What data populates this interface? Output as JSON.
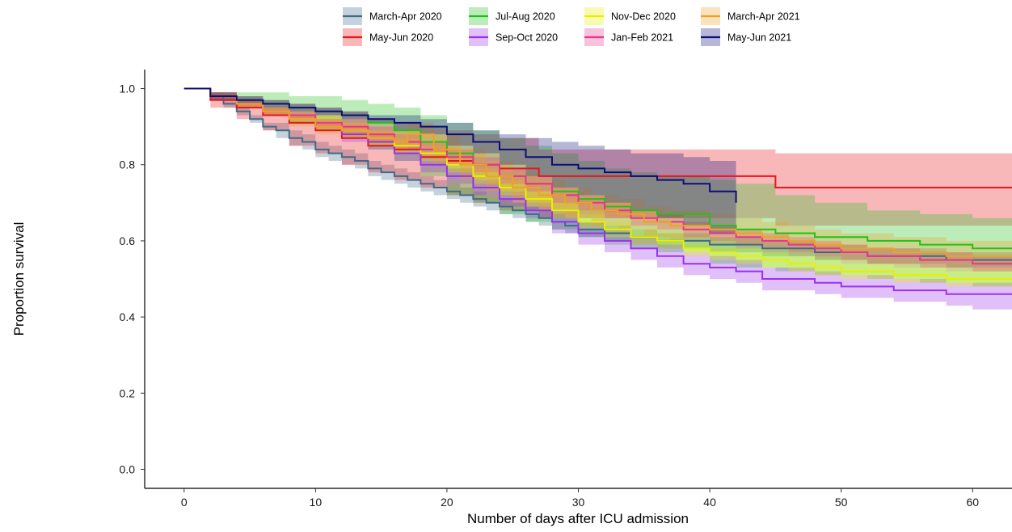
{
  "chart_data": {
    "type": "line",
    "subtype": "kaplan-meier survival curves with confidence bands",
    "title": "",
    "xlabel": "Number of days after ICU admission",
    "ylabel": "Proportion survival",
    "xlim": [
      -3,
      63
    ],
    "ylim": [
      -0.05,
      1.05
    ],
    "xticks": [
      "0",
      "10",
      "20",
      "30",
      "40",
      "50",
      "60"
    ],
    "yticks": [
      "0.0",
      "0.2",
      "0.4",
      "0.6",
      "0.8",
      "1.0"
    ],
    "grid": false,
    "legend_position": "top",
    "series": [
      {
        "name": "March-Apr 2020",
        "color": "#3f6a8a",
        "x": [
          0,
          2,
          3,
          4,
          5,
          6,
          7,
          8,
          9,
          10,
          11,
          12,
          13,
          14,
          15,
          16,
          17,
          18,
          19,
          20,
          21,
          22,
          23,
          24,
          25,
          26,
          27,
          28,
          29,
          30,
          32,
          34,
          36,
          38,
          40,
          42,
          44,
          46,
          48,
          50,
          52,
          54,
          56,
          58,
          60,
          63
        ],
        "y": [
          1.0,
          0.98,
          0.96,
          0.94,
          0.92,
          0.9,
          0.89,
          0.87,
          0.86,
          0.84,
          0.83,
          0.82,
          0.81,
          0.79,
          0.78,
          0.77,
          0.76,
          0.75,
          0.74,
          0.73,
          0.72,
          0.71,
          0.7,
          0.69,
          0.68,
          0.67,
          0.66,
          0.65,
          0.64,
          0.63,
          0.62,
          0.61,
          0.6,
          0.6,
          0.59,
          0.59,
          0.58,
          0.58,
          0.57,
          0.57,
          0.56,
          0.56,
          0.56,
          0.55,
          0.55,
          0.55
        ],
        "lower": [
          1.0,
          0.97,
          0.95,
          0.93,
          0.91,
          0.89,
          0.87,
          0.85,
          0.84,
          0.82,
          0.81,
          0.8,
          0.79,
          0.77,
          0.76,
          0.75,
          0.74,
          0.73,
          0.72,
          0.71,
          0.7,
          0.69,
          0.68,
          0.67,
          0.66,
          0.65,
          0.64,
          0.63,
          0.62,
          0.61,
          0.6,
          0.59,
          0.58,
          0.58,
          0.57,
          0.57,
          0.56,
          0.56,
          0.55,
          0.55,
          0.54,
          0.54,
          0.54,
          0.53,
          0.53,
          0.53
        ],
        "upper": [
          1.0,
          0.99,
          0.97,
          0.95,
          0.93,
          0.91,
          0.91,
          0.89,
          0.88,
          0.86,
          0.85,
          0.84,
          0.83,
          0.81,
          0.8,
          0.79,
          0.78,
          0.77,
          0.76,
          0.75,
          0.74,
          0.73,
          0.72,
          0.71,
          0.7,
          0.69,
          0.68,
          0.67,
          0.66,
          0.65,
          0.64,
          0.63,
          0.62,
          0.62,
          0.61,
          0.61,
          0.6,
          0.6,
          0.59,
          0.59,
          0.58,
          0.58,
          0.58,
          0.57,
          0.57,
          0.57
        ]
      },
      {
        "name": "May-Jun 2020",
        "color": "#e8151b",
        "x": [
          0,
          2,
          4,
          6,
          8,
          10,
          12,
          14,
          16,
          18,
          20,
          22,
          24,
          27,
          45,
          63
        ],
        "y": [
          1.0,
          0.97,
          0.95,
          0.93,
          0.91,
          0.89,
          0.87,
          0.85,
          0.84,
          0.82,
          0.81,
          0.8,
          0.79,
          0.77,
          0.74,
          0.74
        ],
        "lower": [
          1.0,
          0.95,
          0.92,
          0.89,
          0.85,
          0.83,
          0.8,
          0.78,
          0.76,
          0.74,
          0.72,
          0.7,
          0.68,
          0.66,
          0.64,
          0.64
        ],
        "upper": [
          1.0,
          0.99,
          0.98,
          0.97,
          0.96,
          0.95,
          0.94,
          0.92,
          0.91,
          0.9,
          0.89,
          0.88,
          0.87,
          0.84,
          0.83,
          0.83
        ]
      },
      {
        "name": "Jul-Aug 2020",
        "color": "#22c11a",
        "x": [
          0,
          2,
          4,
          6,
          8,
          10,
          12,
          14,
          16,
          18,
          20,
          22,
          24,
          26,
          28,
          30,
          32,
          34,
          36,
          40,
          42,
          45,
          48,
          52,
          56,
          60,
          63
        ],
        "y": [
          1.0,
          0.98,
          0.97,
          0.96,
          0.95,
          0.94,
          0.93,
          0.91,
          0.89,
          0.86,
          0.83,
          0.8,
          0.77,
          0.75,
          0.73,
          0.71,
          0.69,
          0.68,
          0.67,
          0.64,
          0.63,
          0.62,
          0.61,
          0.6,
          0.59,
          0.58,
          0.58
        ],
        "lower": [
          1.0,
          0.97,
          0.95,
          0.93,
          0.91,
          0.89,
          0.87,
          0.84,
          0.81,
          0.77,
          0.72,
          0.7,
          0.67,
          0.65,
          0.63,
          0.61,
          0.59,
          0.58,
          0.57,
          0.54,
          0.53,
          0.52,
          0.51,
          0.5,
          0.49,
          0.48,
          0.48
        ],
        "upper": [
          1.0,
          0.99,
          0.99,
          0.99,
          0.98,
          0.98,
          0.97,
          0.96,
          0.95,
          0.93,
          0.91,
          0.89,
          0.87,
          0.85,
          0.83,
          0.81,
          0.79,
          0.78,
          0.77,
          0.76,
          0.75,
          0.72,
          0.7,
          0.68,
          0.67,
          0.66,
          0.66
        ]
      },
      {
        "name": "Sep-Oct 2020",
        "color": "#9b30f0",
        "x": [
          0,
          2,
          4,
          6,
          8,
          10,
          12,
          14,
          16,
          18,
          20,
          22,
          24,
          26,
          28,
          30,
          32,
          34,
          36,
          38,
          40,
          42,
          44,
          46,
          48,
          50,
          52,
          54,
          56,
          58,
          60,
          63
        ],
        "y": [
          1.0,
          0.98,
          0.96,
          0.94,
          0.92,
          0.9,
          0.88,
          0.86,
          0.83,
          0.8,
          0.77,
          0.74,
          0.71,
          0.68,
          0.65,
          0.62,
          0.6,
          0.58,
          0.56,
          0.54,
          0.53,
          0.52,
          0.5,
          0.5,
          0.49,
          0.48,
          0.48,
          0.47,
          0.47,
          0.46,
          0.46,
          0.46
        ],
        "lower": [
          1.0,
          0.97,
          0.95,
          0.93,
          0.91,
          0.89,
          0.86,
          0.84,
          0.81,
          0.78,
          0.75,
          0.72,
          0.69,
          0.66,
          0.62,
          0.59,
          0.57,
          0.55,
          0.53,
          0.51,
          0.5,
          0.49,
          0.47,
          0.47,
          0.46,
          0.45,
          0.45,
          0.44,
          0.44,
          0.43,
          0.42,
          0.42
        ],
        "upper": [
          1.0,
          0.99,
          0.97,
          0.95,
          0.93,
          0.91,
          0.9,
          0.88,
          0.85,
          0.82,
          0.79,
          0.76,
          0.73,
          0.7,
          0.68,
          0.65,
          0.63,
          0.61,
          0.59,
          0.57,
          0.56,
          0.55,
          0.53,
          0.53,
          0.52,
          0.51,
          0.51,
          0.5,
          0.5,
          0.49,
          0.49,
          0.49
        ]
      },
      {
        "name": "Nov-Dec 2020",
        "color": "#e8f000",
        "x": [
          0,
          2,
          4,
          6,
          8,
          10,
          12,
          14,
          16,
          18,
          20,
          22,
          24,
          26,
          28,
          30,
          32,
          34,
          36,
          38,
          40,
          42,
          44,
          46,
          48,
          50,
          52,
          54,
          56,
          58,
          60,
          63
        ],
        "y": [
          1.0,
          0.98,
          0.96,
          0.94,
          0.92,
          0.91,
          0.89,
          0.87,
          0.85,
          0.83,
          0.8,
          0.77,
          0.74,
          0.71,
          0.68,
          0.65,
          0.63,
          0.61,
          0.6,
          0.58,
          0.57,
          0.56,
          0.55,
          0.54,
          0.53,
          0.52,
          0.52,
          0.51,
          0.51,
          0.5,
          0.5,
          0.5
        ],
        "lower": [
          1.0,
          0.97,
          0.95,
          0.93,
          0.91,
          0.89,
          0.87,
          0.85,
          0.83,
          0.81,
          0.78,
          0.75,
          0.72,
          0.69,
          0.66,
          0.63,
          0.61,
          0.59,
          0.58,
          0.56,
          0.55,
          0.54,
          0.53,
          0.52,
          0.51,
          0.5,
          0.5,
          0.49,
          0.49,
          0.48,
          0.48,
          0.47
        ],
        "upper": [
          1.0,
          0.99,
          0.97,
          0.95,
          0.93,
          0.93,
          0.91,
          0.89,
          0.87,
          0.85,
          0.82,
          0.79,
          0.76,
          0.73,
          0.7,
          0.67,
          0.65,
          0.63,
          0.62,
          0.6,
          0.59,
          0.58,
          0.57,
          0.56,
          0.55,
          0.54,
          0.54,
          0.53,
          0.53,
          0.52,
          0.52,
          0.52
        ]
      },
      {
        "name": "Jan-Feb 2021",
        "color": "#e8348c",
        "x": [
          0,
          2,
          4,
          6,
          8,
          10,
          12,
          14,
          16,
          18,
          20,
          22,
          24,
          26,
          28,
          30,
          32,
          34,
          36,
          38,
          40,
          42,
          44,
          46,
          48,
          50,
          52,
          54,
          56,
          58,
          60,
          63
        ],
        "y": [
          1.0,
          0.98,
          0.96,
          0.94,
          0.93,
          0.91,
          0.9,
          0.88,
          0.86,
          0.84,
          0.82,
          0.8,
          0.77,
          0.75,
          0.72,
          0.7,
          0.68,
          0.66,
          0.65,
          0.63,
          0.62,
          0.61,
          0.6,
          0.59,
          0.58,
          0.57,
          0.56,
          0.56,
          0.55,
          0.55,
          0.54,
          0.54
        ],
        "lower": [
          1.0,
          0.97,
          0.95,
          0.93,
          0.92,
          0.9,
          0.88,
          0.86,
          0.84,
          0.82,
          0.8,
          0.78,
          0.75,
          0.73,
          0.7,
          0.68,
          0.66,
          0.64,
          0.63,
          0.61,
          0.6,
          0.59,
          0.58,
          0.57,
          0.56,
          0.55,
          0.54,
          0.54,
          0.53,
          0.53,
          0.52,
          0.52
        ],
        "upper": [
          1.0,
          0.99,
          0.97,
          0.95,
          0.94,
          0.92,
          0.92,
          0.9,
          0.88,
          0.86,
          0.84,
          0.82,
          0.79,
          0.77,
          0.74,
          0.72,
          0.7,
          0.68,
          0.67,
          0.65,
          0.64,
          0.63,
          0.62,
          0.61,
          0.6,
          0.59,
          0.58,
          0.58,
          0.57,
          0.57,
          0.56,
          0.56
        ]
      },
      {
        "name": "March-Apr 2021",
        "color": "#f0a024",
        "x": [
          0,
          2,
          4,
          6,
          8,
          10,
          12,
          14,
          16,
          17,
          19,
          21,
          23,
          25,
          27,
          29,
          31,
          33,
          35,
          37,
          40,
          42,
          44,
          46,
          48,
          50,
          52,
          54,
          56,
          58,
          60,
          63
        ],
        "y": [
          1.0,
          0.98,
          0.96,
          0.94,
          0.92,
          0.9,
          0.89,
          0.87,
          0.86,
          0.88,
          0.84,
          0.8,
          0.77,
          0.74,
          0.72,
          0.7,
          0.68,
          0.67,
          0.65,
          0.64,
          0.63,
          0.62,
          0.61,
          0.6,
          0.59,
          0.58,
          0.58,
          0.57,
          0.57,
          0.56,
          0.56,
          0.56
        ],
        "lower": [
          1.0,
          0.97,
          0.95,
          0.93,
          0.9,
          0.88,
          0.87,
          0.85,
          0.83,
          0.85,
          0.8,
          0.76,
          0.73,
          0.7,
          0.68,
          0.66,
          0.64,
          0.63,
          0.61,
          0.6,
          0.59,
          0.58,
          0.57,
          0.56,
          0.55,
          0.54,
          0.54,
          0.53,
          0.53,
          0.52,
          0.52,
          0.52
        ],
        "upper": [
          1.0,
          0.99,
          0.97,
          0.95,
          0.94,
          0.92,
          0.91,
          0.89,
          0.89,
          0.91,
          0.88,
          0.84,
          0.81,
          0.78,
          0.76,
          0.74,
          0.72,
          0.71,
          0.69,
          0.68,
          0.67,
          0.66,
          0.65,
          0.64,
          0.63,
          0.62,
          0.62,
          0.61,
          0.61,
          0.6,
          0.6,
          0.6
        ]
      },
      {
        "name": "May-Jun 2021",
        "color": "#0d0d7a",
        "x": [
          0,
          2,
          4,
          6,
          8,
          10,
          12,
          14,
          16,
          18,
          20,
          22,
          24,
          26,
          28,
          30,
          32,
          34,
          36,
          38,
          40,
          42
        ],
        "y": [
          1.0,
          0.98,
          0.97,
          0.96,
          0.95,
          0.94,
          0.93,
          0.92,
          0.91,
          0.9,
          0.88,
          0.86,
          0.84,
          0.82,
          0.8,
          0.79,
          0.78,
          0.77,
          0.76,
          0.75,
          0.73,
          0.7
        ],
        "lower": [
          1.0,
          0.97,
          0.96,
          0.95,
          0.94,
          0.93,
          0.92,
          0.91,
          0.89,
          0.88,
          0.85,
          0.83,
          0.8,
          0.77,
          0.74,
          0.72,
          0.7,
          0.68,
          0.66,
          0.64,
          0.62,
          0.6
        ],
        "upper": [
          1.0,
          0.99,
          0.98,
          0.97,
          0.96,
          0.95,
          0.94,
          0.93,
          0.93,
          0.92,
          0.91,
          0.89,
          0.88,
          0.87,
          0.86,
          0.85,
          0.84,
          0.83,
          0.83,
          0.82,
          0.81,
          0.8
        ]
      }
    ]
  }
}
